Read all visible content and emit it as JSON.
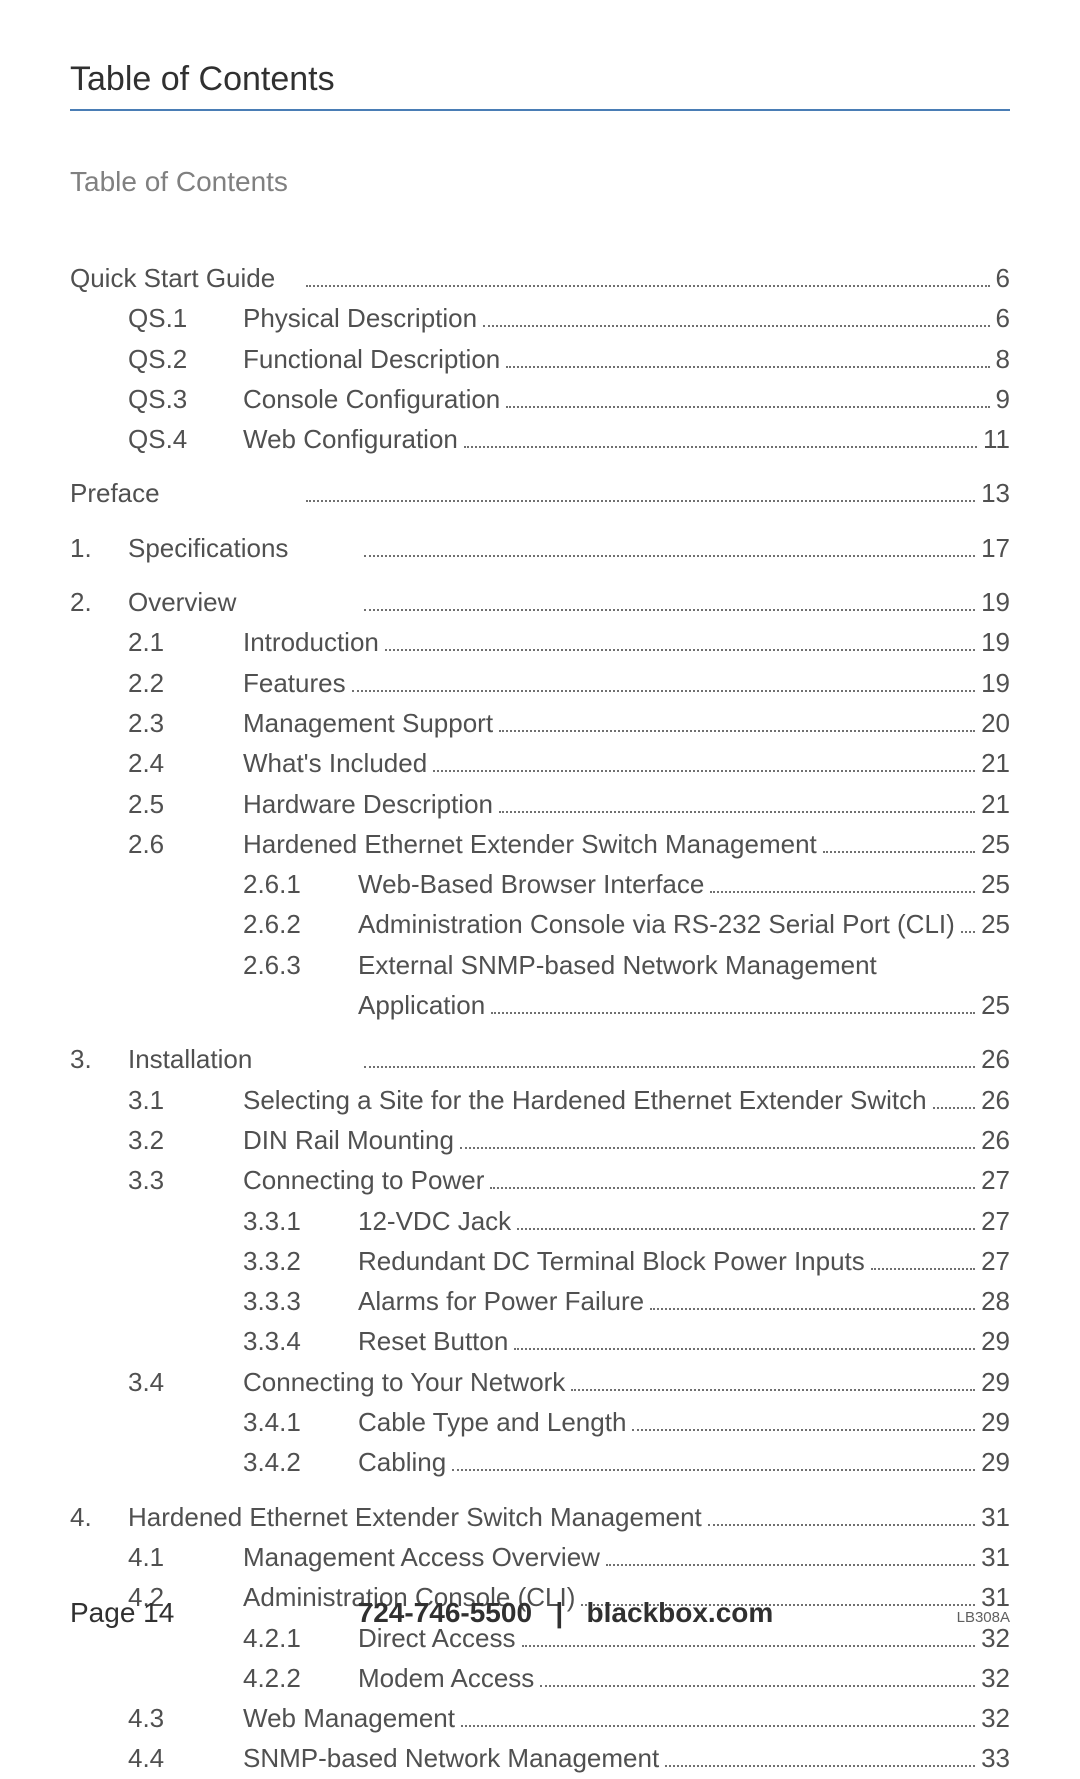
{
  "header": {
    "title": "Table of Contents",
    "subtitle": "Table of Contents"
  },
  "toc": [
    {
      "type": "l1title",
      "num": "",
      "title": "Quick Start Guide",
      "page": "6"
    },
    {
      "type": "l2",
      "num": "QS.1",
      "title": "Physical Description",
      "page": "6"
    },
    {
      "type": "l2",
      "num": "QS.2",
      "title": "Functional Description",
      "page": "8"
    },
    {
      "type": "l2",
      "num": "QS.3",
      "title": "Console Configuration",
      "page": "9"
    },
    {
      "type": "l2",
      "num": "QS.4",
      "title": "Web Configuration",
      "page": "11"
    },
    {
      "type": "gap"
    },
    {
      "type": "l1title",
      "num": "",
      "title": "Preface",
      "page": "13"
    },
    {
      "type": "gap"
    },
    {
      "type": "l1",
      "num": "1.",
      "title": "Specifications",
      "page": "17"
    },
    {
      "type": "gap"
    },
    {
      "type": "l1",
      "num": "2.",
      "title": "Overview",
      "page": "19"
    },
    {
      "type": "l2",
      "num": "2.1",
      "title": "Introduction",
      "page": "19"
    },
    {
      "type": "l2",
      "num": "2.2",
      "title": "Features",
      "page": "19"
    },
    {
      "type": "l2",
      "num": "2.3",
      "title": "Management Support",
      "page": "20"
    },
    {
      "type": "l2",
      "num": "2.4",
      "title": "What's Included",
      "page": "21"
    },
    {
      "type": "l2",
      "num": "2.5",
      "title": "Hardware Description",
      "page": "21"
    },
    {
      "type": "l2",
      "num": "2.6",
      "title": "Hardened Ethernet Extender Switch Management",
      "page": "25"
    },
    {
      "type": "l3",
      "num": "2.6.1",
      "title": "Web-Based Browser Interface",
      "page": "25"
    },
    {
      "type": "l3",
      "num": "2.6.2",
      "title": "Administration Console via RS-232 Serial Port (CLI)",
      "page": "25"
    },
    {
      "type": "l3nopage",
      "num": "2.6.3",
      "title": "External SNMP-based Network Management"
    },
    {
      "type": "l3cont",
      "title": "Application",
      "page": "25"
    },
    {
      "type": "gap"
    },
    {
      "type": "l1",
      "num": "3.",
      "title": "Installation",
      "page": "26"
    },
    {
      "type": "l2",
      "num": "3.1",
      "title": "Selecting a Site for the Hardened Ethernet Extender Switch",
      "page": "26"
    },
    {
      "type": "l2",
      "num": "3.2",
      "title": "DIN Rail Mounting",
      "page": "26"
    },
    {
      "type": "l2",
      "num": "3.3",
      "title": "Connecting to Power",
      "page": "27"
    },
    {
      "type": "l3",
      "num": "3.3.1",
      "title": "12-VDC Jack",
      "page": "27"
    },
    {
      "type": "l3",
      "num": "3.3.2",
      "title": "Redundant DC Terminal Block Power Inputs",
      "page": "27"
    },
    {
      "type": "l3",
      "num": "3.3.3",
      "title": "Alarms for Power Failure",
      "page": "28"
    },
    {
      "type": "l3",
      "num": "3.3.4",
      "title": "Reset Button",
      "page": "29"
    },
    {
      "type": "l2",
      "num": "3.4",
      "title": "Connecting to Your Network",
      "page": "29"
    },
    {
      "type": "l3",
      "num": "3.4.1",
      "title": "Cable Type and Length",
      "page": "29"
    },
    {
      "type": "l3",
      "num": "3.4.2",
      "title": "Cabling",
      "page": "29"
    },
    {
      "type": "gap"
    },
    {
      "type": "l1wide",
      "num": "4.",
      "title": "Hardened Ethernet Extender Switch Management",
      "page": "31"
    },
    {
      "type": "l2",
      "num": "4.1",
      "title": "Management Access Overview",
      "page": "31"
    },
    {
      "type": "l2",
      "num": "4.2",
      "title": "Administration Console (CLI)",
      "page": "31"
    },
    {
      "type": "l3",
      "num": "4.2.1",
      "title": "Direct Access",
      "page": "32"
    },
    {
      "type": "l3",
      "num": "4.2.2",
      "title": "Modem Access",
      "page": "32"
    },
    {
      "type": "l2",
      "num": "4.3",
      "title": "Web Management",
      "page": "32"
    },
    {
      "type": "l2",
      "num": "4.4",
      "title": "SNMP-based Network Management",
      "page": "33"
    }
  ],
  "footer": {
    "page_label": "Page 14",
    "phone": "724-746-5500",
    "divider": "|",
    "site": "blackbox.com",
    "code": "LB308A"
  }
}
